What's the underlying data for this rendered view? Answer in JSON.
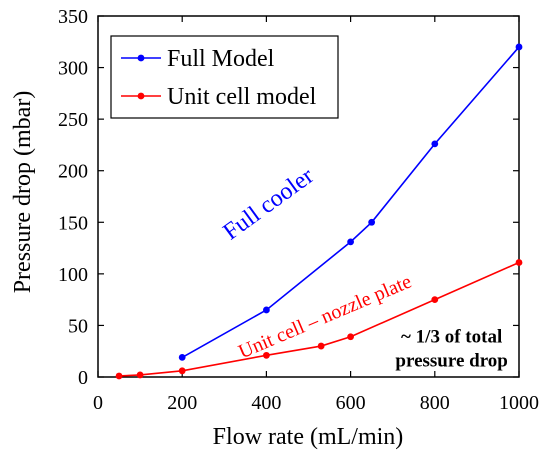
{
  "chart_data": {
    "type": "line",
    "xlabel": "Flow rate (mL/min)",
    "ylabel": "Pressure drop (mbar)",
    "xlim": [
      0,
      1000
    ],
    "ylim": [
      0,
      350
    ],
    "x_ticks": [
      0,
      200,
      400,
      600,
      800,
      1000
    ],
    "y_ticks": [
      0,
      50,
      100,
      150,
      200,
      250,
      300,
      350
    ],
    "grid": false,
    "legend_position": "top-left",
    "series": [
      {
        "name": "Full Model",
        "color": "#0000ff",
        "x": [
          200,
          400,
          600,
          650,
          800,
          1000
        ],
        "y": [
          19,
          65,
          131,
          150,
          226,
          320
        ]
      },
      {
        "name": "Unit cell model",
        "color": "#ff0000",
        "x": [
          50,
          100,
          200,
          400,
          530,
          600,
          800,
          1000
        ],
        "y": [
          1,
          2,
          6,
          21,
          30,
          39,
          75,
          111
        ]
      }
    ],
    "annotations": [
      {
        "text": "Full cooler",
        "color": "#0000ff",
        "x": 415,
        "y": 162,
        "angle": -36
      },
      {
        "text": "Unit cell – nozzle plate",
        "color": "#ff0000",
        "x": 545,
        "y": 53,
        "angle": -23
      },
      {
        "lines": [
          "~ 1/3 of total",
          "pressure drop"
        ],
        "color": "#000000",
        "x": 840,
        "y": 12
      }
    ]
  }
}
